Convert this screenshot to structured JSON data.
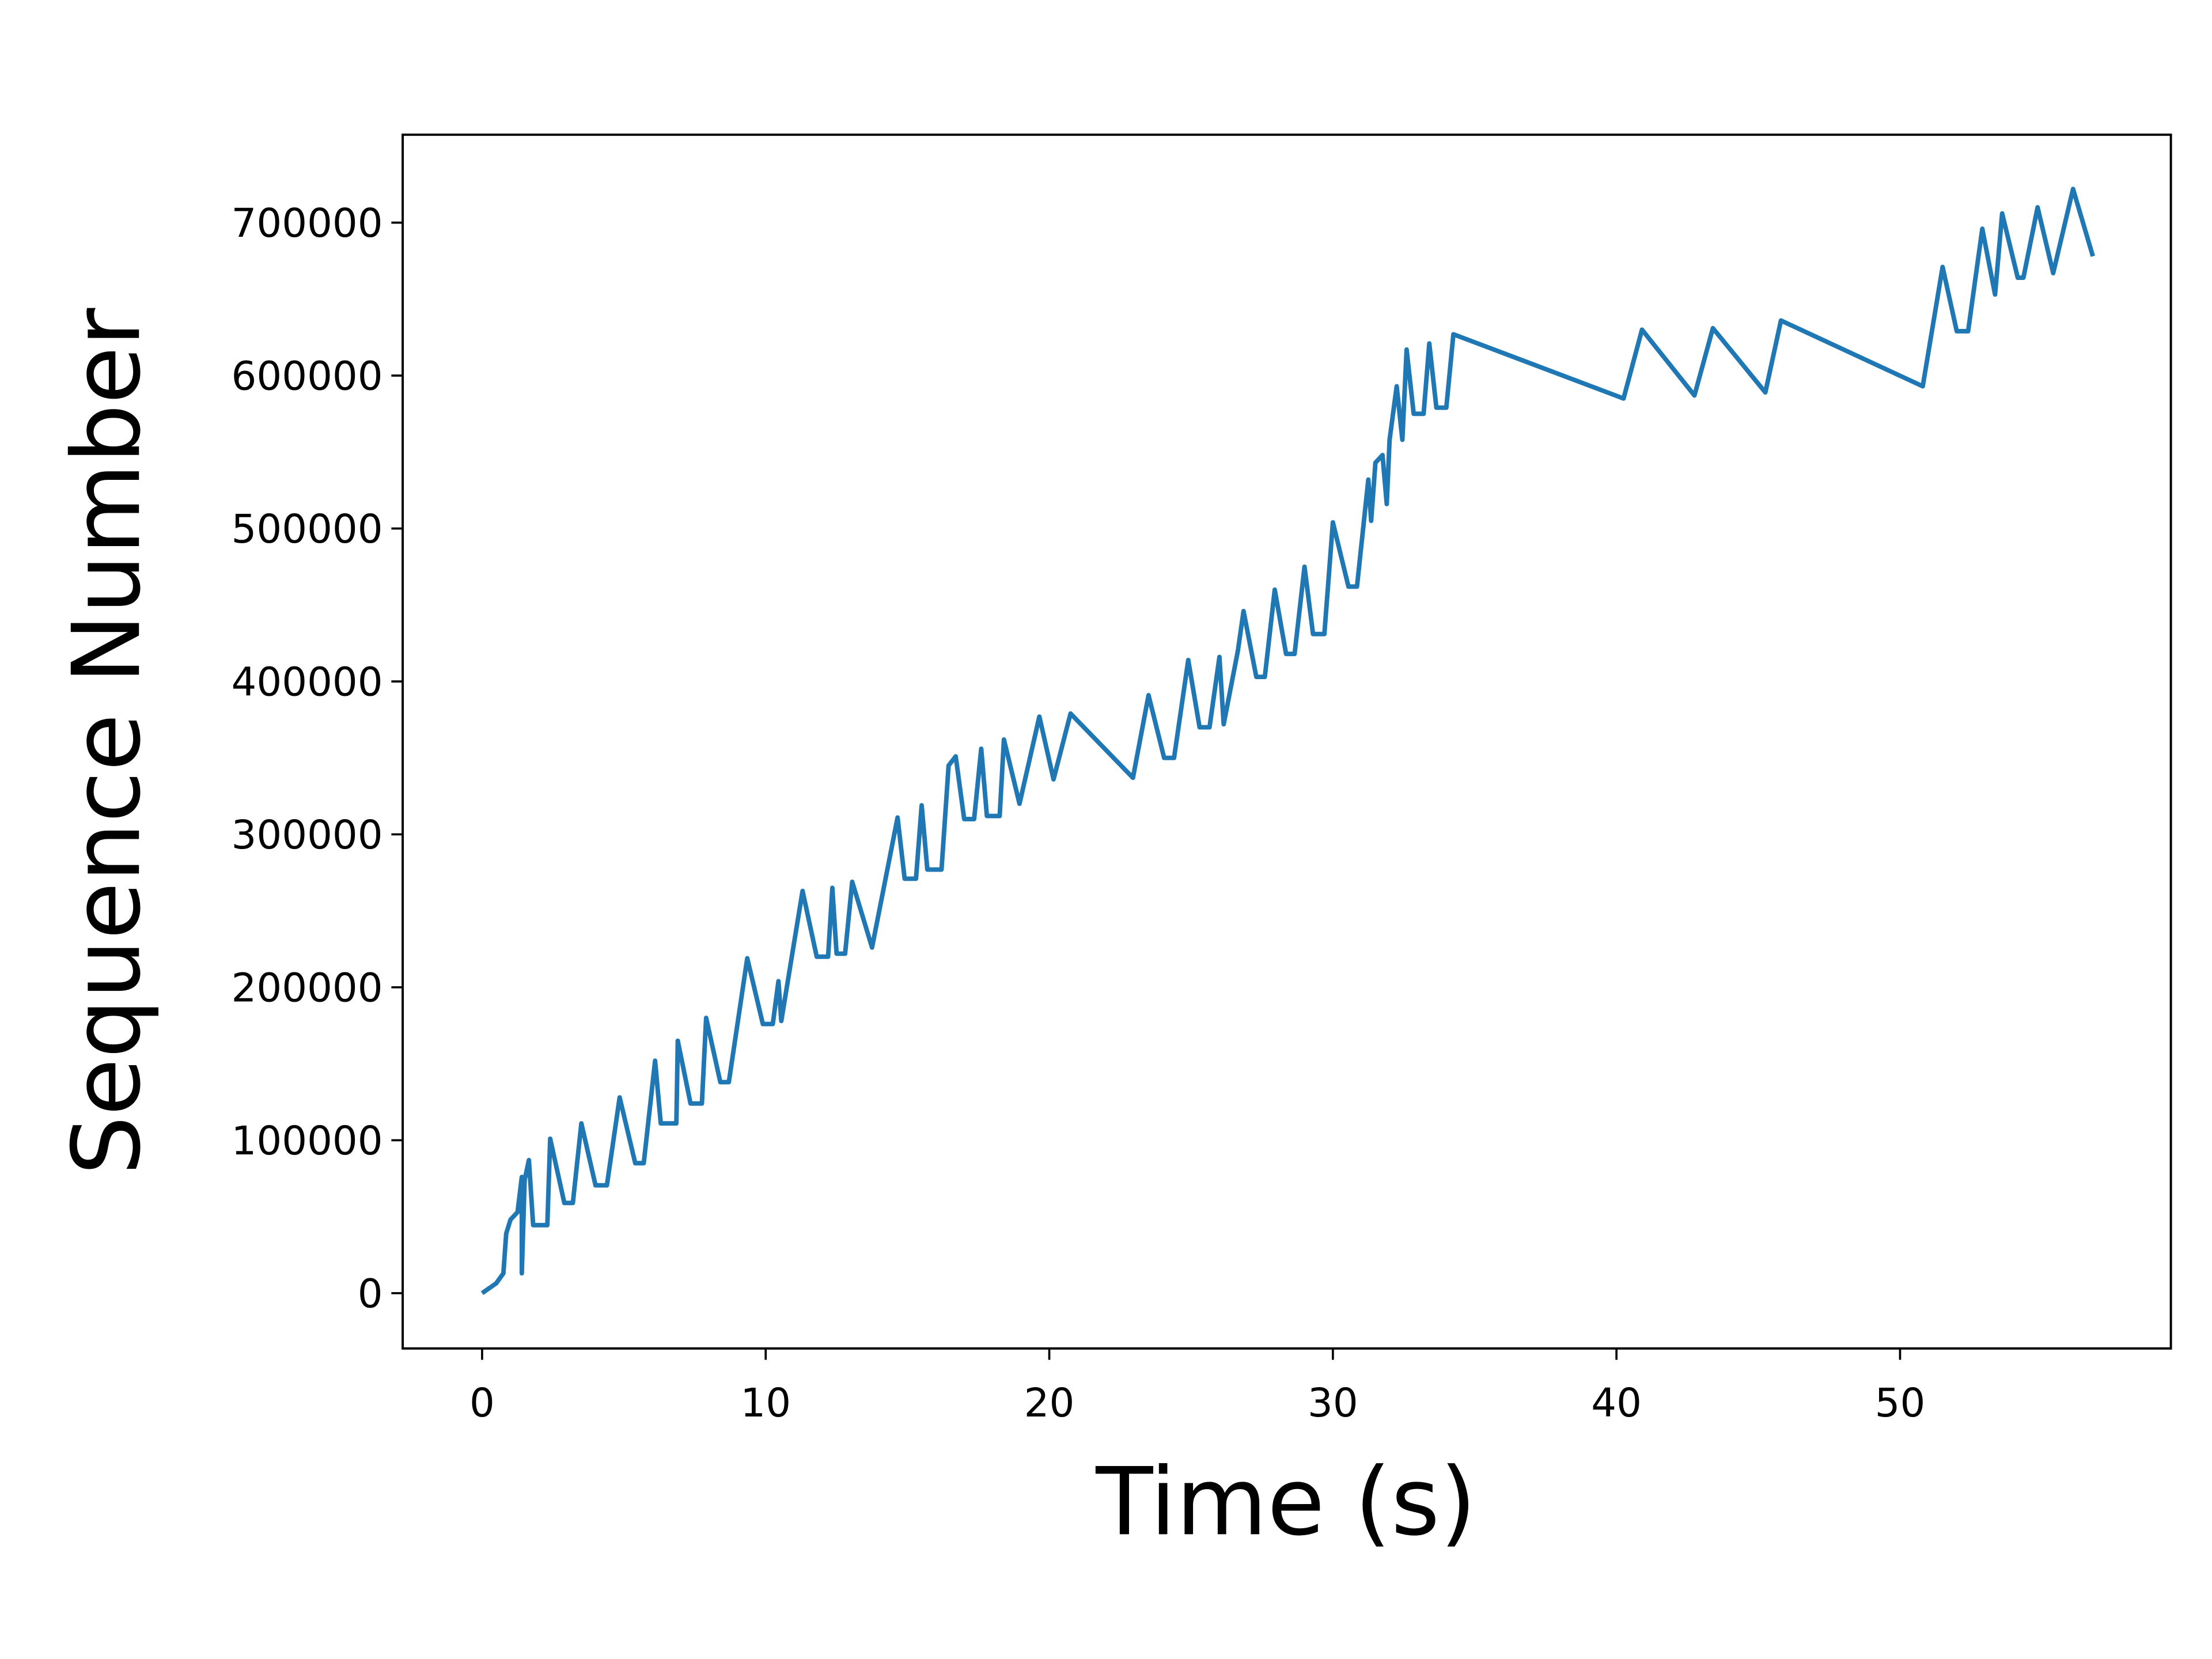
{
  "chart_data": {
    "type": "line",
    "xlabel": "Time (s)",
    "ylabel": "Sequence Number",
    "color": "#1f77b4",
    "x": [
      0,
      0.5,
      0.75,
      0.85,
      1.0,
      1.25,
      1.4,
      1.4,
      1.5,
      1.65,
      1.8,
      2.3,
      2.4,
      2.9,
      3.2,
      3.5,
      4.0,
      4.4,
      4.85,
      5.4,
      5.7,
      6.1,
      6.3,
      6.85,
      6.9,
      7.35,
      7.75,
      7.9,
      8.4,
      8.7,
      9.35,
      9.9,
      10.25,
      10.45,
      10.55,
      11.3,
      11.8,
      12.2,
      12.35,
      12.5,
      12.8,
      13.05,
      13.75,
      14.65,
      14.9,
      15.3,
      15.5,
      15.7,
      16.2,
      16.45,
      16.7,
      17.0,
      17.35,
      17.6,
      17.8,
      18.25,
      18.4,
      18.95,
      19.65,
      20.15,
      20.75,
      22.95,
      23.5,
      24.05,
      24.4,
      24.9,
      25.3,
      25.65,
      26.0,
      26.15,
      26.65,
      26.85,
      27.3,
      27.6,
      27.95,
      28.35,
      28.65,
      29.0,
      29.3,
      29.7,
      30.0,
      30.55,
      30.85,
      31.25,
      31.35,
      31.5,
      31.75,
      31.9,
      32.0,
      32.25,
      32.45,
      32.6,
      32.85,
      33.2,
      33.4,
      33.65,
      34.0,
      34.25,
      40.25,
      40.9,
      42.75,
      43.4,
      45.25,
      45.8,
      50.8,
      51.5,
      52.0,
      52.4,
      52.9,
      53.35,
      53.6,
      54.15,
      54.35,
      54.85,
      55.4,
      56.1,
      56.8
    ],
    "values": [
      0,
      6500,
      13000,
      39000,
      48000,
      53000,
      76000,
      13000,
      74000,
      87000,
      44500,
      44500,
      101000,
      59000,
      59000,
      111000,
      70500,
      70500,
      128000,
      85000,
      85000,
      152000,
      111000,
      111000,
      165000,
      124000,
      124000,
      180000,
      138000,
      138000,
      219000,
      176000,
      176000,
      204000,
      178000,
      263000,
      220000,
      220000,
      265000,
      222000,
      222000,
      269000,
      226000,
      311000,
      271000,
      271000,
      319000,
      277000,
      277000,
      345000,
      351000,
      310000,
      310000,
      356000,
      312000,
      312000,
      362000,
      320000,
      377000,
      336000,
      379000,
      337000,
      391000,
      350000,
      350000,
      414000,
      370000,
      370000,
      416000,
      372000,
      420000,
      446000,
      403000,
      403000,
      460000,
      418000,
      418000,
      475000,
      431000,
      431000,
      504000,
      462000,
      462000,
      532000,
      505000,
      543000,
      548000,
      516000,
      558000,
      593000,
      558000,
      617000,
      575000,
      575000,
      621000,
      579000,
      579000,
      627000,
      585000,
      630000,
      587000,
      631000,
      589000,
      636000,
      593000,
      671000,
      629000,
      629000,
      696000,
      653000,
      706000,
      664000,
      664000,
      710000,
      667000,
      722000,
      678000
    ],
    "xlim": [
      -2.8,
      59.55
    ],
    "ylim": [
      -36160,
      757500
    ],
    "xticks": [
      0,
      10,
      20,
      30,
      40,
      50
    ],
    "yticks": [
      0,
      100000,
      200000,
      300000,
      400000,
      500000,
      600000,
      700000
    ]
  }
}
